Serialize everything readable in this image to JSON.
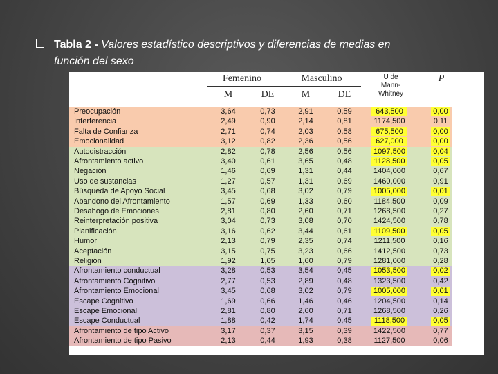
{
  "title": {
    "label": "Tabla 2 -",
    "text": "Valores estadístico descriptivos y diferencias de medias en",
    "line2": "función del sexo"
  },
  "table": {
    "header": {
      "group1": "Femenino",
      "group2": "Masculino",
      "test": "U de Mann-Whitney",
      "p": "P",
      "sub": [
        "M",
        "DE",
        "M",
        "DE"
      ]
    },
    "highlight_color": "#ffff33",
    "groups": [
      {
        "color": "#f9cbad",
        "rows": [
          {
            "cells": [
              "Preocupación",
              "3,64",
              "0,73",
              "2,91",
              "0,59",
              "643,500",
              "0,00"
            ],
            "highlighted": true
          },
          {
            "cells": [
              "Interferencia",
              "2,49",
              "0,90",
              "2,14",
              "0,81",
              "1174,500",
              "0,11"
            ],
            "highlighted": false
          },
          {
            "cells": [
              "Falta de Confianza",
              "2,71",
              "0,74",
              "2,03",
              "0,58",
              "675,500",
              "0,00"
            ],
            "highlighted": true
          },
          {
            "cells": [
              "Emocionalidad",
              "3,12",
              "0,82",
              "2,36",
              "0,56",
              "627,000",
              "0,00"
            ],
            "highlighted": true
          }
        ]
      },
      {
        "color": "#d7e4bd",
        "rows": [
          {
            "cells": [
              "Autodistracción",
              "2,82",
              "0,78",
              "2,56",
              "0,56",
              "1097,500",
              "0,04"
            ],
            "highlighted": true
          },
          {
            "cells": [
              "Afrontamiento activo",
              "3,40",
              "0,61",
              "3,65",
              "0,48",
              "1128,500",
              "0,05"
            ],
            "highlighted": true
          },
          {
            "cells": [
              "Negación",
              "1,46",
              "0,69",
              "1,31",
              "0,44",
              "1404,000",
              "0,67"
            ],
            "highlighted": false
          },
          {
            "cells": [
              "Uso de sustancias",
              "1,27",
              "0,57",
              "1,31",
              "0,69",
              "1460,000",
              "0,91"
            ],
            "highlighted": false
          },
          {
            "cells": [
              "Búsqueda de Apoyo Social",
              "3,45",
              "0,68",
              "3,02",
              "0,79",
              "1005,000",
              "0,01"
            ],
            "highlighted": true
          },
          {
            "cells": [
              "Abandono del Afrontamiento",
              "1,57",
              "0,69",
              "1,33",
              "0,60",
              "1184,500",
              "0,09"
            ],
            "highlighted": false
          },
          {
            "cells": [
              "Desahogo de Emociones",
              "2,81",
              "0,80",
              "2,60",
              "0,71",
              "1268,500",
              "0,27"
            ],
            "highlighted": false
          },
          {
            "cells": [
              "Reinterpretación positiva",
              "3,04",
              "0,73",
              "3,08",
              "0,70",
              "1424,500",
              "0,78"
            ],
            "highlighted": false
          },
          {
            "cells": [
              "Planificación",
              "3,16",
              "0,62",
              "3,44",
              "0,61",
              "1109,500",
              "0,05"
            ],
            "highlighted": true
          },
          {
            "cells": [
              "Humor",
              "2,13",
              "0,79",
              "2,35",
              "0,74",
              "1211,500",
              "0,16"
            ],
            "highlighted": false
          },
          {
            "cells": [
              "Aceptación",
              "3,15",
              "0,75",
              "3,23",
              "0,66",
              "1412,500",
              "0,73"
            ],
            "highlighted": false
          },
          {
            "cells": [
              "Religión",
              "1,92",
              "1,05",
              "1,60",
              "0,79",
              "1281,000",
              "0,28"
            ],
            "highlighted": false
          }
        ]
      },
      {
        "color": "#ccc0da",
        "rows": [
          {
            "cells": [
              "Afrontamiento conductual",
              "3,28",
              "0,53",
              "3,54",
              "0,45",
              "1053,500",
              "0,02"
            ],
            "highlighted": true
          },
          {
            "cells": [
              "Afrontamiento Cognitivo",
              "2,77",
              "0,53",
              "2,89",
              "0,48",
              "1323,500",
              "0,42"
            ],
            "highlighted": false
          },
          {
            "cells": [
              "Afrontamiento Emocional",
              "3,45",
              "0,68",
              "3,02",
              "0,79",
              "1005,000",
              "0,01"
            ],
            "highlighted": true
          },
          {
            "cells": [
              "Escape Cognitivo",
              "1,69",
              "0,66",
              "1,46",
              "0,46",
              "1204,500",
              "0,14"
            ],
            "highlighted": false
          },
          {
            "cells": [
              "Escape Emocional",
              "2,81",
              "0,80",
              "2,60",
              "0,71",
              "1268,500",
              "0,26"
            ],
            "highlighted": false
          },
          {
            "cells": [
              "Escape Conductual",
              "1,88",
              "0,42",
              "1,74",
              "0,45",
              "1118,500",
              "0,05"
            ],
            "highlighted": true
          }
        ]
      },
      {
        "color": "#e6b9b8",
        "rows": [
          {
            "cells": [
              "Afrontamiento de tipo Activo",
              "3,17",
              "0,37",
              "3,15",
              "0,39",
              "1422,500",
              "0,77"
            ],
            "highlighted": false
          },
          {
            "cells": [
              "Afrontamiento de tipo Pasivo",
              "2,13",
              "0,44",
              "1,93",
              "0,38",
              "1127,500",
              "0,06"
            ],
            "highlighted": false
          }
        ]
      }
    ]
  }
}
